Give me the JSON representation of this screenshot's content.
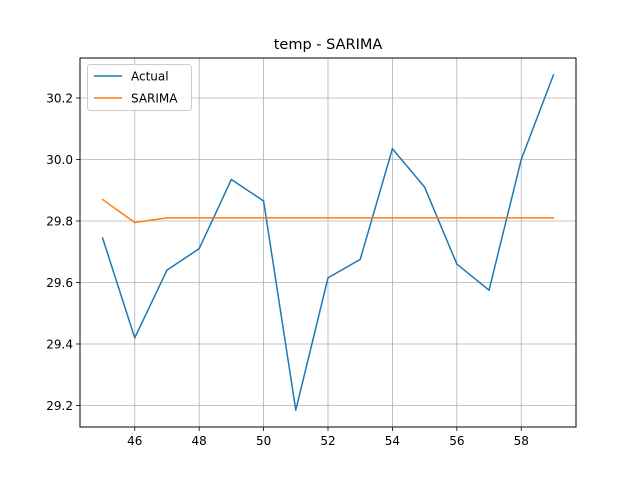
{
  "chart_data": {
    "type": "line",
    "title": "temp - SARIMA",
    "xlabel": "",
    "ylabel": "",
    "xlim": [
      44.3,
      59.7
    ],
    "ylim": [
      29.13,
      30.33
    ],
    "xticks": [
      46,
      48,
      50,
      52,
      54,
      56,
      58
    ],
    "yticks": [
      29.2,
      29.4,
      29.6,
      29.8,
      30.0,
      30.2
    ],
    "grid": true,
    "legend_position": "upper-left",
    "x": [
      45,
      46,
      47,
      48,
      49,
      50,
      51,
      52,
      53,
      54,
      55,
      56,
      57,
      58,
      59
    ],
    "series": [
      {
        "name": "Actual",
        "color": "#1f77b4",
        "values": [
          29.745,
          29.42,
          29.64,
          29.71,
          29.935,
          29.865,
          29.185,
          29.615,
          29.675,
          30.035,
          29.91,
          29.66,
          29.575,
          30.0,
          30.275
        ]
      },
      {
        "name": "SARIMA",
        "color": "#ff7f0e",
        "values": [
          29.87,
          29.795,
          29.81,
          29.81,
          29.81,
          29.81,
          29.81,
          29.81,
          29.81,
          29.81,
          29.81,
          29.81,
          29.81,
          29.81,
          29.81
        ]
      }
    ]
  }
}
